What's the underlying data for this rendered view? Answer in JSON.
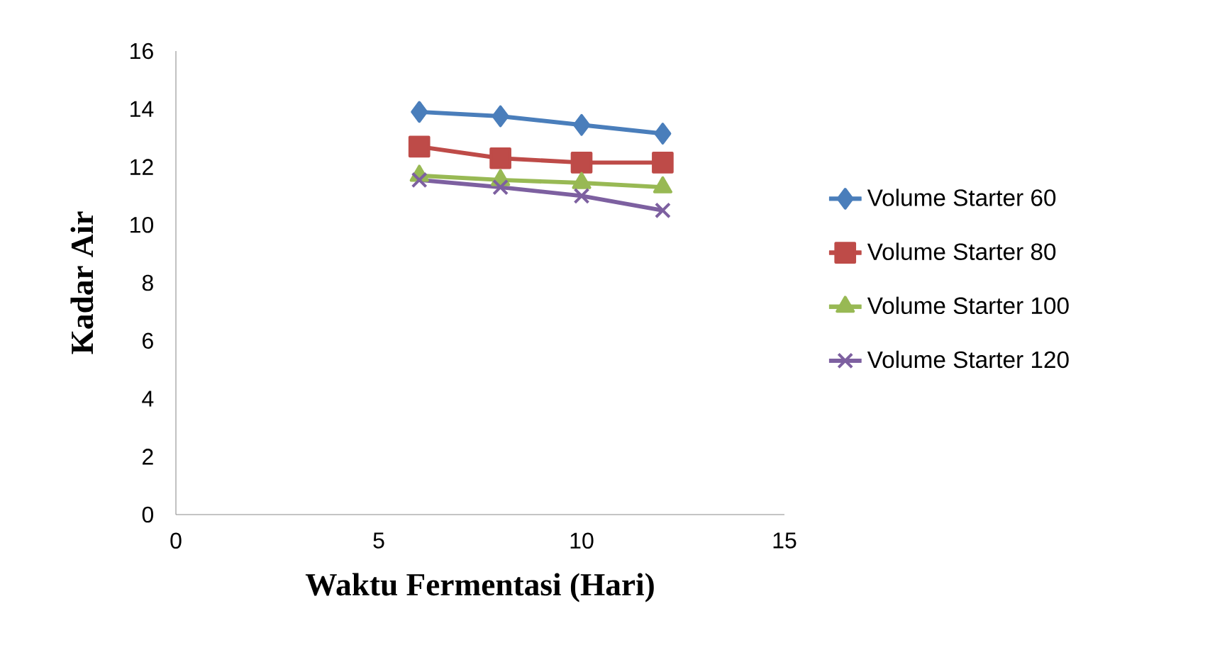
{
  "chart_data": {
    "type": "line",
    "xlabel": "Waktu  Fermentasi (Hari)",
    "ylabel": "Kadar Air",
    "xlim": [
      0,
      15
    ],
    "xticks": [
      0,
      5,
      10,
      15
    ],
    "ylim": [
      0,
      16
    ],
    "yticks": [
      0,
      2,
      4,
      6,
      8,
      10,
      12,
      14,
      16
    ],
    "x": [
      6,
      8,
      10,
      12
    ],
    "legend": "right",
    "grid": false,
    "line_style": "solid",
    "series": [
      {
        "name": "Volume Starter 60",
        "color": "#4a7ebb",
        "marker": "diamond",
        "values": [
          13.9,
          13.75,
          13.45,
          13.15
        ]
      },
      {
        "name": "Volume Starter 80",
        "color": "#be4b48",
        "marker": "square",
        "values": [
          12.7,
          12.3,
          12.15,
          12.15
        ]
      },
      {
        "name": "Volume Starter 100",
        "color": "#98b954",
        "marker": "triangle",
        "values": [
          11.7,
          11.55,
          11.45,
          11.3
        ]
      },
      {
        "name": "Volume Starter 120",
        "color": "#7d60a0",
        "marker": "cross",
        "values": [
          11.55,
          11.3,
          11.0,
          10.5
        ]
      }
    ]
  }
}
